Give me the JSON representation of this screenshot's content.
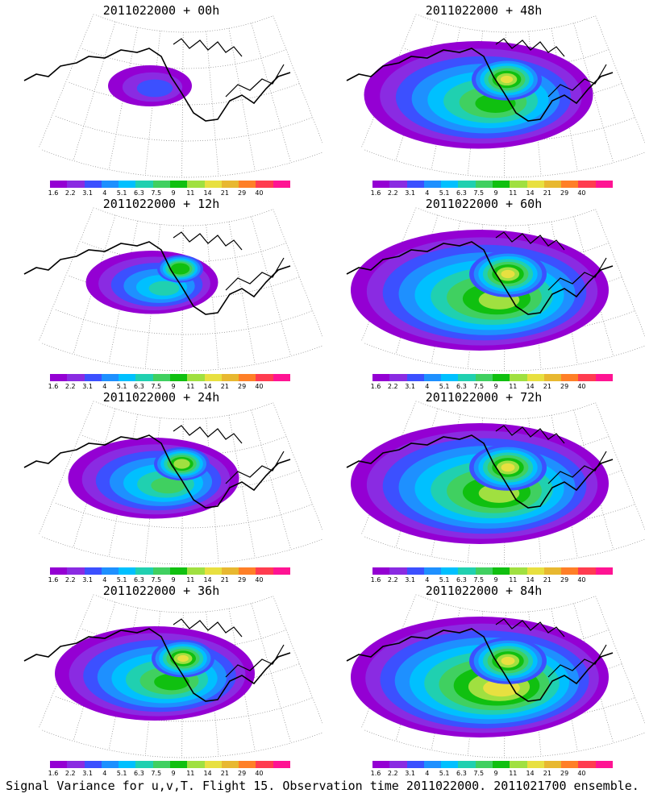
{
  "caption": "Signal Variance for u,v,T. Flight 15. Observation time 2011022000. 2011021700 ensemble.",
  "colorbar": {
    "labels": [
      "1.6",
      "2.2",
      "3.1",
      "4",
      "5.1",
      "6.3",
      "7.5",
      "9",
      "11",
      "14",
      "21",
      "29",
      "40"
    ],
    "colors": [
      "#9400d3",
      "#8a2be2",
      "#3c50ff",
      "#1e90ff",
      "#00c0ff",
      "#20d0b0",
      "#40d060",
      "#10c010",
      "#a0e040",
      "#e8e040",
      "#e8b830",
      "#ff7f27",
      "#ff3c50",
      "#ff1493"
    ]
  },
  "panels": [
    {
      "title": "2011022000 + 00h",
      "spread": 0.1,
      "peak": 3
    },
    {
      "title": "2011022000 + 12h",
      "spread": 0.35,
      "peak": 6
    },
    {
      "title": "2011022000 + 24h",
      "spread": 0.55,
      "peak": 7
    },
    {
      "title": "2011022000 + 36h",
      "spread": 0.7,
      "peak": 8
    },
    {
      "title": "2011022000 + 48h",
      "spread": 0.85,
      "peak": 8
    },
    {
      "title": "2011022000 + 60h",
      "spread": 1.0,
      "peak": 9
    },
    {
      "title": "2011022000 + 72h",
      "spread": 1.0,
      "peak": 9
    },
    {
      "title": "2011022000 + 84h",
      "spread": 1.0,
      "peak": 10
    }
  ]
}
